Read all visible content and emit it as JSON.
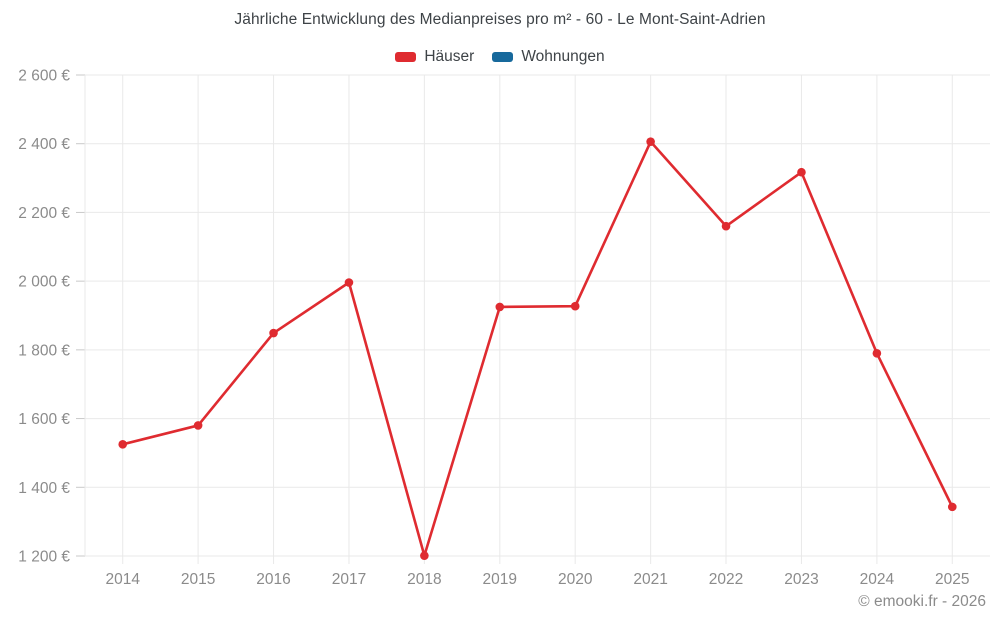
{
  "title": "Jährliche Entwicklung des Medianpreises pro m² - 60 - Le Mont-Saint-Adrien",
  "legend": {
    "items": [
      {
        "label": "Häuser",
        "color": "#df2b30"
      },
      {
        "label": "Wohnungen",
        "color": "#17699c"
      }
    ]
  },
  "footer": {
    "credit": "© emooki.fr - 2026"
  },
  "colors": {
    "haeuser": "#df2b30",
    "wohnungen": "#17699c",
    "grid": "#e9e9e9",
    "tick": "#c9c9c9",
    "axis_label": "#8b8b8b",
    "title_text": "#3e4347",
    "background": "#ffffff"
  },
  "chart_data": {
    "type": "line",
    "title": "Jährliche Entwicklung des Medianpreises pro m² - 60 - Le Mont-Saint-Adrien",
    "x": [
      2014,
      2015,
      2016,
      2017,
      2018,
      2019,
      2020,
      2021,
      2022,
      2023,
      2024,
      2025
    ],
    "series": [
      {
        "name": "Häuser",
        "color": "#df2b30",
        "values": [
          1525,
          1580,
          1849,
          1996,
          1201,
          1925,
          1927,
          2406,
          2160,
          2317,
          1790,
          1343
        ]
      },
      {
        "name": "Wohnungen",
        "color": "#17699c",
        "values": []
      }
    ],
    "xlabel": "",
    "ylabel": "",
    "ylim": [
      1200,
      2600
    ],
    "ytick_step": 200,
    "ytick_format": "{value} €",
    "grid": true,
    "legend_position": "top"
  }
}
